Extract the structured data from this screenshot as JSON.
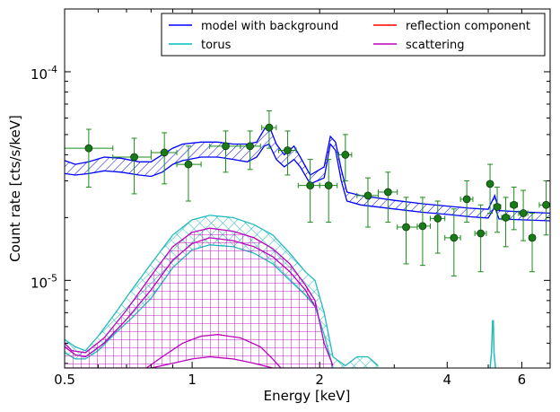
{
  "chart_data": {
    "type": "line",
    "xlabel": "Energy [keV]",
    "ylabel": "Count rate [cts/s/keV]",
    "xscale": "log",
    "yscale": "log",
    "xlim": [
      0.5,
      7.0
    ],
    "ylim": [
      3.8e-06,
      0.0002
    ],
    "x_ticks": [
      {
        "value": 0.5,
        "label": "0.5"
      },
      {
        "value": 1,
        "label": "1"
      },
      {
        "value": 2,
        "label": "2"
      },
      {
        "value": 4,
        "label": "4"
      },
      {
        "value": 6,
        "label": "6"
      }
    ],
    "y_ticks": [
      {
        "value": 1e-05,
        "label_base": "10",
        "label_exp": "-5"
      },
      {
        "value": 0.0001,
        "label_base": "10",
        "label_exp": "-4"
      }
    ],
    "legend": {
      "placement": "top-right",
      "entries": [
        {
          "label": "model with background",
          "color": "#0000ff"
        },
        {
          "label": "reflection component",
          "color": "#ff0000"
        },
        {
          "label": "torus",
          "color": "#00bfbf"
        },
        {
          "label": "scattering",
          "color": "#bf00bf"
        }
      ]
    },
    "colors": {
      "model": "#0000ff",
      "reflection": "#ff0000",
      "torus": "#22bbbb",
      "scattering": "#bb00bb",
      "data": "#1a7a1a",
      "errorbar": "#1a8c1a"
    },
    "data_points": [
      {
        "x": 0.57,
        "y": 4.3e-05,
        "xerr": [
          0.5,
          0.65
        ],
        "yerr": [
          2.8e-05,
          5.3e-05
        ]
      },
      {
        "x": 0.73,
        "y": 3.9e-05,
        "xerr": [
          0.65,
          0.8
        ],
        "yerr": [
          2.6e-05,
          4.8e-05
        ]
      },
      {
        "x": 0.86,
        "y": 4.1e-05,
        "xerr": [
          0.8,
          0.92
        ],
        "yerr": [
          2.9e-05,
          5.1e-05
        ]
      },
      {
        "x": 0.98,
        "y": 3.6e-05,
        "xerr": [
          0.92,
          1.05
        ],
        "yerr": [
          2.4e-05,
          4.4e-05
        ]
      },
      {
        "x": 1.2,
        "y": 4.4e-05,
        "xerr": [
          1.1,
          1.3
        ],
        "yerr": [
          3.3e-05,
          5.2e-05
        ]
      },
      {
        "x": 1.37,
        "y": 4.4e-05,
        "xerr": [
          1.3,
          1.45
        ],
        "yerr": [
          3.4e-05,
          5.2e-05
        ]
      },
      {
        "x": 1.52,
        "y": 5.4e-05,
        "xerr": [
          1.46,
          1.58
        ],
        "yerr": [
          4.3e-05,
          6.5e-05
        ]
      },
      {
        "x": 1.68,
        "y": 4.2e-05,
        "xerr": [
          1.6,
          1.76
        ],
        "yerr": [
          3.2e-05,
          5.2e-05
        ]
      },
      {
        "x": 1.9,
        "y": 2.85e-05,
        "xerr": [
          1.78,
          2.0
        ],
        "yerr": [
          1.9e-05,
          3.8e-05
        ]
      },
      {
        "x": 2.1,
        "y": 2.85e-05,
        "xerr": [
          2.0,
          2.2
        ],
        "yerr": [
          1.9e-05,
          3.8e-05
        ]
      },
      {
        "x": 2.3,
        "y": 4e-05,
        "xerr": [
          2.22,
          2.38
        ],
        "yerr": [
          3e-05,
          5e-05
        ]
      },
      {
        "x": 2.6,
        "y": 2.55e-05,
        "xerr": [
          2.45,
          2.75
        ],
        "yerr": [
          1.8e-05,
          3.1e-05
        ]
      },
      {
        "x": 2.9,
        "y": 2.65e-05,
        "xerr": [
          2.75,
          3.05
        ],
        "yerr": [
          1.9e-05,
          3.3e-05
        ]
      },
      {
        "x": 3.2,
        "y": 1.8e-05,
        "xerr": [
          3.05,
          3.4
        ],
        "yerr": [
          1.2e-05,
          2.5e-05
        ]
      },
      {
        "x": 3.5,
        "y": 1.82e-05,
        "xerr": [
          3.4,
          3.65
        ],
        "yerr": [
          1.18e-05,
          2.5e-05
        ]
      },
      {
        "x": 3.8,
        "y": 1.98e-05,
        "xerr": [
          3.65,
          3.95
        ],
        "yerr": [
          1.35e-05,
          2.4e-05
        ]
      },
      {
        "x": 4.15,
        "y": 1.6e-05,
        "xerr": [
          3.95,
          4.3
        ],
        "yerr": [
          1.05e-05,
          2.2e-05
        ]
      },
      {
        "x": 4.45,
        "y": 2.45e-05,
        "xerr": [
          4.3,
          4.6
        ],
        "yerr": [
          1.9e-05,
          3e-05
        ]
      },
      {
        "x": 4.8,
        "y": 1.68e-05,
        "xerr": [
          4.65,
          4.95
        ],
        "yerr": [
          1.1e-05,
          2.3e-05
        ]
      },
      {
        "x": 5.05,
        "y": 2.9e-05,
        "xerr": [
          4.98,
          5.12
        ],
        "yerr": [
          2.1e-05,
          3.6e-05
        ]
      },
      {
        "x": 5.25,
        "y": 2.25e-05,
        "xerr": [
          5.15,
          5.35
        ],
        "yerr": [
          1.7e-05,
          2.8e-05
        ]
      },
      {
        "x": 5.5,
        "y": 2e-05,
        "xerr": [
          5.38,
          5.62
        ],
        "yerr": [
          1.45e-05,
          2.5e-05
        ]
      },
      {
        "x": 5.75,
        "y": 2.3e-05,
        "xerr": [
          5.64,
          5.86
        ],
        "yerr": [
          1.75e-05,
          2.8e-05
        ]
      },
      {
        "x": 6.05,
        "y": 2.1e-05,
        "xerr": [
          5.9,
          6.2
        ],
        "yerr": [
          1.55e-05,
          2.7e-05
        ]
      },
      {
        "x": 6.35,
        "y": 1.6e-05,
        "xerr": [
          6.25,
          6.45
        ],
        "yerr": [
          1.1e-05,
          2.1e-05
        ]
      },
      {
        "x": 6.85,
        "y": 2.3e-05,
        "xerr": [
          6.6,
          7.0
        ],
        "yerr": [
          1.65e-05,
          3e-05
        ]
      }
    ],
    "model_band": [
      {
        "x": 0.5,
        "lo": 3.25e-05,
        "hi": 3.75e-05
      },
      {
        "x": 0.53,
        "lo": 3.2e-05,
        "hi": 3.6e-05
      },
      {
        "x": 0.57,
        "lo": 3.25e-05,
        "hi": 3.7e-05
      },
      {
        "x": 0.62,
        "lo": 3.35e-05,
        "hi": 3.9e-05
      },
      {
        "x": 0.68,
        "lo": 3.3e-05,
        "hi": 3.85e-05
      },
      {
        "x": 0.75,
        "lo": 3.2e-05,
        "hi": 3.7e-05
      },
      {
        "x": 0.8,
        "lo": 3.15e-05,
        "hi": 3.7e-05
      },
      {
        "x": 0.85,
        "lo": 3.3e-05,
        "hi": 4e-05
      },
      {
        "x": 0.9,
        "lo": 3.6e-05,
        "hi": 4.3e-05
      },
      {
        "x": 0.95,
        "lo": 3.75e-05,
        "hi": 4.5e-05
      },
      {
        "x": 1.05,
        "lo": 3.9e-05,
        "hi": 4.6e-05
      },
      {
        "x": 1.15,
        "lo": 3.9e-05,
        "hi": 4.6e-05
      },
      {
        "x": 1.25,
        "lo": 3.8e-05,
        "hi": 4.5e-05
      },
      {
        "x": 1.35,
        "lo": 3.7e-05,
        "hi": 4.5e-05
      },
      {
        "x": 1.42,
        "lo": 3.9e-05,
        "hi": 4.6e-05
      },
      {
        "x": 1.48,
        "lo": 4.4e-05,
        "hi": 5.3e-05
      },
      {
        "x": 1.52,
        "lo": 4.5e-05,
        "hi": 5.5e-05
      },
      {
        "x": 1.58,
        "lo": 3.8e-05,
        "hi": 4.5e-05
      },
      {
        "x": 1.65,
        "lo": 3.5e-05,
        "hi": 4e-05
      },
      {
        "x": 1.74,
        "lo": 3.8e-05,
        "hi": 4.4e-05
      },
      {
        "x": 1.8,
        "lo": 3.5e-05,
        "hi": 3.9e-05
      },
      {
        "x": 1.9,
        "lo": 2.9e-05,
        "hi": 3.2e-05
      },
      {
        "x": 2.05,
        "lo": 3.1e-05,
        "hi": 3.5e-05
      },
      {
        "x": 2.12,
        "lo": 4.5e-05,
        "hi": 4.9e-05
      },
      {
        "x": 2.18,
        "lo": 4.2e-05,
        "hi": 4.6e-05
      },
      {
        "x": 2.25,
        "lo": 3e-05,
        "hi": 3.4e-05
      },
      {
        "x": 2.32,
        "lo": 2.4e-05,
        "hi": 2.65e-05
      },
      {
        "x": 2.5,
        "lo": 2.3e-05,
        "hi": 2.55e-05
      },
      {
        "x": 3.0,
        "lo": 2.2e-05,
        "hi": 2.42e-05
      },
      {
        "x": 3.5,
        "lo": 2.12e-05,
        "hi": 2.33e-05
      },
      {
        "x": 4.0,
        "lo": 2.07e-05,
        "hi": 2.27e-05
      },
      {
        "x": 4.5,
        "lo": 2.02e-05,
        "hi": 2.22e-05
      },
      {
        "x": 5.0,
        "lo": 1.99e-05,
        "hi": 2.19e-05
      },
      {
        "x": 5.18,
        "lo": 2.25e-05,
        "hi": 2.55e-05
      },
      {
        "x": 5.3,
        "lo": 1.97e-05,
        "hi": 2.16e-05
      },
      {
        "x": 6.0,
        "lo": 1.95e-05,
        "hi": 2.13e-05
      },
      {
        "x": 7.0,
        "lo": 1.93e-05,
        "hi": 2.1e-05
      }
    ],
    "torus_band": [
      {
        "x": 0.5,
        "lo": 4.5e-06,
        "hi": 5.2e-06
      },
      {
        "x": 0.53,
        "lo": 4.2e-06,
        "hi": 4.8e-06
      },
      {
        "x": 0.56,
        "lo": 4.2e-06,
        "hi": 4.6e-06
      },
      {
        "x": 0.6,
        "lo": 4.6e-06,
        "hi": 5.4e-06
      },
      {
        "x": 0.66,
        "lo": 5.6e-06,
        "hi": 7e-06
      },
      {
        "x": 0.72,
        "lo": 6.6e-06,
        "hi": 9e-06
      },
      {
        "x": 0.8,
        "lo": 8.2e-06,
        "hi": 1.2e-05
      },
      {
        "x": 0.9,
        "lo": 1.15e-05,
        "hi": 1.65e-05
      },
      {
        "x": 1.0,
        "lo": 1.4e-05,
        "hi": 1.95e-05
      },
      {
        "x": 1.1,
        "lo": 1.48e-05,
        "hi": 2.05e-05
      },
      {
        "x": 1.25,
        "lo": 1.45e-05,
        "hi": 2e-05
      },
      {
        "x": 1.4,
        "lo": 1.35e-05,
        "hi": 1.85e-05
      },
      {
        "x": 1.55,
        "lo": 1.2e-05,
        "hi": 1.65e-05
      },
      {
        "x": 1.7,
        "lo": 1e-05,
        "hi": 1.35e-05
      },
      {
        "x": 1.85,
        "lo": 8.5e-06,
        "hi": 1.1e-05
      },
      {
        "x": 1.95,
        "lo": 7.5e-06,
        "hi": 1e-05
      },
      {
        "x": 2.05,
        "lo": 5.5e-06,
        "hi": 7e-06
      },
      {
        "x": 2.15,
        "lo": 3.8e-06,
        "hi": 4.3e-06
      },
      {
        "x": 2.3,
        "lo": 3.8e-06,
        "hi": 3.9e-06
      },
      {
        "x": 2.45,
        "lo": 3.8e-06,
        "hi": 4.3e-06
      },
      {
        "x": 2.6,
        "lo": 3.8e-06,
        "hi": 4.3e-06
      },
      {
        "x": 2.75,
        "lo": 3.8e-06,
        "hi": 3.9e-06
      }
    ],
    "torus_line": {
      "x": [
        5.05,
        5.09,
        5.12,
        5.14,
        5.16,
        5.2
      ],
      "y": [
        3.8e-06,
        4.5e-06,
        6.4e-06,
        6.4e-06,
        4.5e-06,
        3.8e-06
      ]
    },
    "scattering_band": [
      {
        "x": 0.5,
        "lo": 3.8e-06,
        "hi": 5e-06
      },
      {
        "x": 0.52,
        "lo": 3.8e-06,
        "hi": 4.6e-06
      },
      {
        "x": 0.56,
        "lo": 3.8e-06,
        "hi": 4.5e-06
      },
      {
        "x": 0.62,
        "lo": 3.8e-06,
        "hi": 5.3e-06
      },
      {
        "x": 0.7,
        "lo": 3.8e-06,
        "hi": 7.2e-06
      },
      {
        "x": 0.8,
        "lo": 3.8e-06,
        "hi": 1.05e-05
      },
      {
        "x": 0.9,
        "lo": 4e-06,
        "hi": 1.45e-05
      },
      {
        "x": 1.0,
        "lo": 4.2e-06,
        "hi": 1.7e-05
      },
      {
        "x": 1.1,
        "lo": 4.3e-06,
        "hi": 1.78e-05
      },
      {
        "x": 1.25,
        "lo": 4.2e-06,
        "hi": 1.72e-05
      },
      {
        "x": 1.4,
        "lo": 4e-06,
        "hi": 1.6e-05
      },
      {
        "x": 1.55,
        "lo": 3.8e-06,
        "hi": 1.42e-05
      },
      {
        "x": 1.7,
        "lo": 3.8e-06,
        "hi": 1.2e-05
      },
      {
        "x": 1.85,
        "lo": 3.8e-06,
        "hi": 9.5e-06
      },
      {
        "x": 1.95,
        "lo": 3.8e-06,
        "hi": 8e-06
      },
      {
        "x": 2.05,
        "lo": 3.8e-06,
        "hi": 5e-06
      },
      {
        "x": 2.15,
        "lo": 3.8e-06,
        "hi": 3.9e-06
      }
    ],
    "scattering_mid_line": {
      "x": [
        0.5,
        0.53,
        0.56,
        0.62,
        0.7,
        0.8,
        0.9,
        1.0,
        1.1,
        1.25,
        1.4,
        1.55,
        1.7,
        1.85,
        1.95
      ],
      "y": [
        4.8e-06,
        4.4e-06,
        4.3e-06,
        5e-06,
        6.5e-06,
        9e-06,
        1.25e-05,
        1.5e-05,
        1.6e-05,
        1.55e-05,
        1.45e-05,
        1.3e-05,
        1.1e-05,
        9e-06,
        7.5e-06
      ]
    },
    "scattering_low_line": {
      "x": [
        0.78,
        0.85,
        0.95,
        1.05,
        1.15,
        1.3,
        1.45,
        1.55,
        1.62
      ],
      "y": [
        3.8e-06,
        4.3e-06,
        5e-06,
        5.4e-06,
        5.5e-06,
        5.3e-06,
        4.8e-06,
        4.2e-06,
        3.8e-06
      ]
    }
  }
}
